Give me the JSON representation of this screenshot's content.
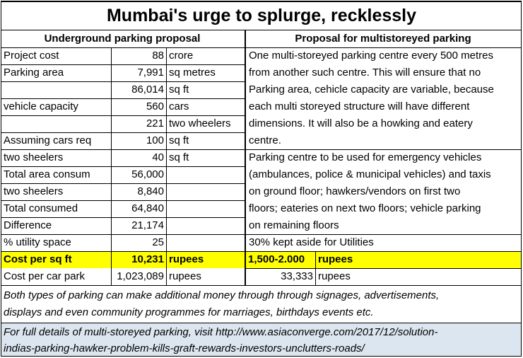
{
  "title": "Mumbai's  urge to splurge, recklessly",
  "left_header": "Underground parking proposal",
  "right_header": "Proposal for multistoreyed parking",
  "rows": [
    {
      "label": "Project cost",
      "value": "88",
      "unit": "crore"
    },
    {
      "label": "Parking area",
      "value": "7,991",
      "unit": "sq metres"
    },
    {
      "label": "",
      "value": "86,014",
      "unit": "sq ft"
    },
    {
      "label": "vehicle capacity",
      "value": "560",
      "unit": "cars"
    },
    {
      "label": "",
      "value": "221",
      "unit": "two wheelers"
    },
    {
      "label": "Assuming cars req",
      "value": "100",
      "unit": "sq ft"
    },
    {
      "label": "two sheelers",
      "value": "40",
      "unit": "sq ft"
    },
    {
      "label": "Total area consum",
      "value": "56,000",
      "unit": ""
    },
    {
      "label": "two sheelers",
      "value": "8,840",
      "unit": ""
    },
    {
      "label": "Total consumed",
      "value": "64,840",
      "unit": ""
    },
    {
      "label": "Difference",
      "value": "21,174",
      "unit": ""
    },
    {
      "label": "% utility space",
      "value": "25",
      "unit": ""
    }
  ],
  "right_lines": [
    "One multi-storeyed parking centre every 500 metres",
    "from another such centre. This will ensure that no",
    "Parking area, cehicle capacity are variable, because",
    "each multi storeyed structure will have different",
    "dimensions. It will also be a howking and eatery",
    "centre.",
    "Parking centre to be used for emergency vehicles",
    "(ambulances, police & municipal vehicles)  and taxis",
    "on ground floor; hawkers/vendors on first two",
    "floors; eateries on next two floors; vehicle parking",
    "on remaining floors",
    "30% kept aside for Utilities"
  ],
  "cost_sqft": {
    "label": "Cost per sq ft",
    "value": "10,231",
    "unit": "rupees",
    "right_value": "1,500-2.000",
    "right_unit": "rupees"
  },
  "cost_car": {
    "label": "Cost per car park",
    "value": "1,023,089",
    "unit": "rupees",
    "right_value": "33,333",
    "right_unit": "rupees"
  },
  "note_lines": [
    "Both types of parking can make additional money through through signages, advertisements,",
    "displays and even community programmes for marriages, birthdays events etc."
  ],
  "link_lines": [
    "For full details of multi-storeyed parking, visit http://www.asiaconverge.com/2017/12/solution-",
    "indias-parking-hawker-problem-kills-graft-rewards-investors-unclutters-roads/"
  ],
  "colors": {
    "highlight": "#ffff00",
    "link_bg": "#dce6f1",
    "grid": "#000000"
  }
}
